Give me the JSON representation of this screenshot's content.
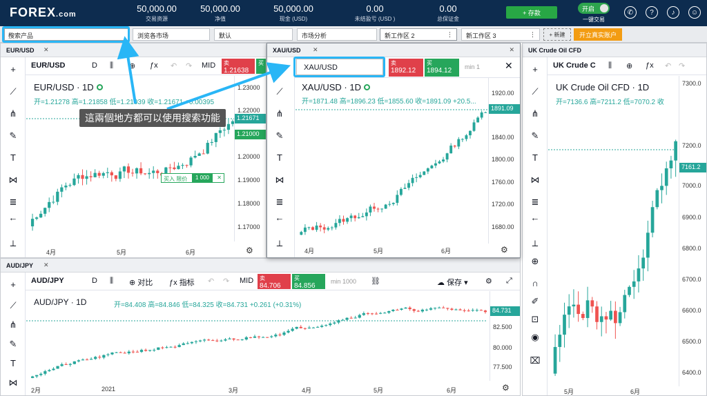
{
  "header": {
    "logo": "FOREX",
    "logo_suffix": ".com",
    "stats": [
      {
        "value": "50,000.00",
        "label": "交易资源"
      },
      {
        "value": "50,000.00",
        "label": "净值"
      },
      {
        "value": "50,000.00",
        "label": "现金 (USD)"
      },
      {
        "value": "0.00",
        "label": "未结盈亏 (USD )"
      },
      {
        "value": "0.00",
        "label": "总保证金"
      }
    ],
    "deposit_label": "+ 存款",
    "toggle_state": "开启",
    "toggle_label": "一键交易",
    "icons": [
      "phone-icon",
      "help-icon",
      "bell-icon",
      "headset-icon",
      "user-icon"
    ]
  },
  "tabbar": {
    "search_placeholder": "搜索产品",
    "tabs": [
      "浏览各市场",
      "默认",
      "市场分析",
      "新工作区 2",
      "新工作区 3"
    ],
    "new_label": "+ 新建",
    "open_account": "开立真实账户"
  },
  "panes": {
    "eurusd": {
      "title": "EUR/USD",
      "symbol": "EUR/USD",
      "interval": "D",
      "mid": "MID",
      "sell_label": "卖",
      "sell_price": "1.21638",
      "buy_label": "买",
      "legend_title": "EUR/USD · 1D",
      "ohlc": "开=1.21278 高=1.21858 低=1.21039 收=1.21671 +0.00395",
      "last_price": "1.21671",
      "order_price": "1.21000",
      "order_label": "买入 限价",
      "order_qty": "1 000",
      "yticks": [
        "1.23000",
        "1.22000",
        "1.21000",
        "1.20000",
        "1.19000",
        "1.18000",
        "1.17000"
      ],
      "xticks": [
        "4月",
        "5月",
        "6月"
      ]
    },
    "xauusd": {
      "title": "XAU/USD",
      "symbol_input": "XAU/USD",
      "sell_label": "卖",
      "sell_price": "1892.12",
      "buy_label": "买",
      "buy_price": "1894.12",
      "min": "min 1",
      "legend_title": "XAU/USD · 1D",
      "ohlc": "开=1871.48 高=1896.23 低=1855.60 收=1891.09 +20.5...",
      "last_price": "1891.09",
      "yticks": [
        "1920.00",
        "1880.00",
        "1840.00",
        "1800.00",
        "1760.00",
        "1720.00",
        "1680.00"
      ],
      "xticks": [
        "4月",
        "5月",
        "6月"
      ]
    },
    "audjpy": {
      "title": "AUD/JPY",
      "symbol": "AUD/JPY",
      "interval": "D",
      "compare": "对比",
      "indicators": "指标",
      "mid": "MID",
      "sell_label": "卖",
      "sell_price": "84.706",
      "buy_label": "买",
      "buy_price": "84.856",
      "min": "min 1000",
      "save": "保存",
      "legend_title": "AUD/JPY · 1D",
      "ohlc": "开=84.408 高=84.846 低=84.325 收=84.731 +0.261 (+0.31%)",
      "last_price": "84.731",
      "yticks": [
        "82.500",
        "80.000",
        "77.500"
      ],
      "xticks": [
        "2月",
        "2021",
        "3月",
        "4月",
        "5月",
        "6月"
      ]
    },
    "ukoil": {
      "title": "UK Crude Oil CFD",
      "symbol": "UK Crude C",
      "legend_title": "UK Crude Oil CFD · 1D",
      "ohlc": "开=7136.6 高=7211.2 低=7070.2 收",
      "last_price": "7161.2",
      "yticks": [
        "7300.0",
        "7200.0",
        "7100.0",
        "7000.0",
        "6900.0",
        "6800.0",
        "6700.0",
        "6600.0",
        "6500.0",
        "6400.0"
      ],
      "xticks": [
        "5月",
        "6月"
      ]
    }
  },
  "callout": "這兩個地方都可以使用搜索功能",
  "colors": {
    "up": "#26a69a",
    "down": "#ef5350",
    "header": "#0d2c4f",
    "highlight": "#29b6f6"
  }
}
